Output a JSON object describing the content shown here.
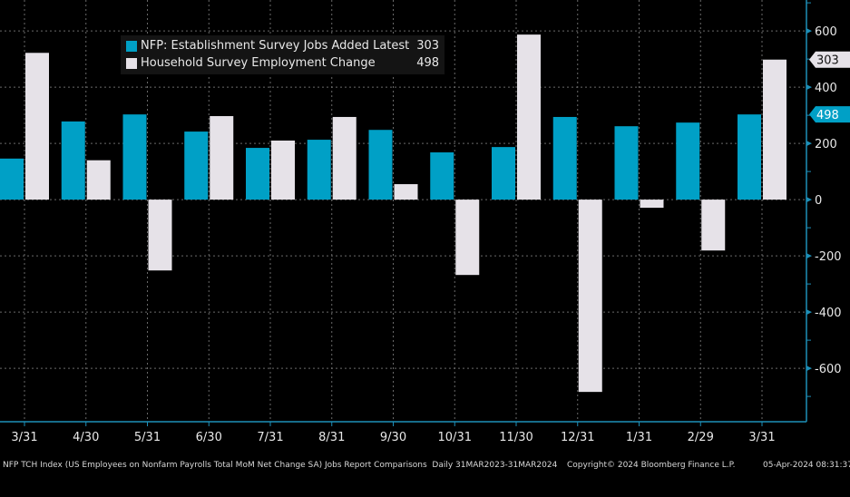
{
  "chart_data": {
    "type": "bar",
    "categories": [
      "3/31",
      "4/30",
      "5/31",
      "6/30",
      "7/31",
      "8/31",
      "9/30",
      "10/31",
      "11/30",
      "12/31",
      "1/31",
      "2/29",
      "3/31"
    ],
    "series": [
      {
        "name": "NFP: Establishment Survey Jobs Added",
        "color": "#00a0c6",
        "values": [
          146,
          278,
          303,
          242,
          184,
          213,
          248,
          168,
          187,
          294,
          261,
          274,
          303
        ]
      },
      {
        "name": "Household Survey Employment Change",
        "color": "#e6e2e8",
        "values": [
          522,
          140,
          -252,
          297,
          210,
          294,
          55,
          -268,
          587,
          -684,
          -29,
          -181,
          498
        ]
      }
    ],
    "yticks": [
      600,
      400,
      200,
      0,
      -200,
      -400,
      -600
    ],
    "ylim": [
      -790,
      710
    ],
    "grid": true,
    "y_axis_side": "right",
    "legend_placement": "top-left",
    "last_value_labels": [
      "498",
      "303"
    ]
  },
  "legend": {
    "items": [
      {
        "label": "NFP: Establishment Survey Jobs Added Latest",
        "value": "303",
        "color": "#00a0c6"
      },
      {
        "label": "Household Survey Employment Change",
        "value": "498",
        "color": "#e6e2e8"
      }
    ]
  },
  "footer": {
    "description": "NFP TCH Index (US Employees on Nonfarm Payrolls Total MoM Net Change SA) Jobs Report Comparisons  Daily 31MAR2023-31MAR2024",
    "copyright": "Copyright© 2024 Bloomberg Finance L.P.",
    "timestamp": "05-Apr-2024 08:31:37"
  }
}
